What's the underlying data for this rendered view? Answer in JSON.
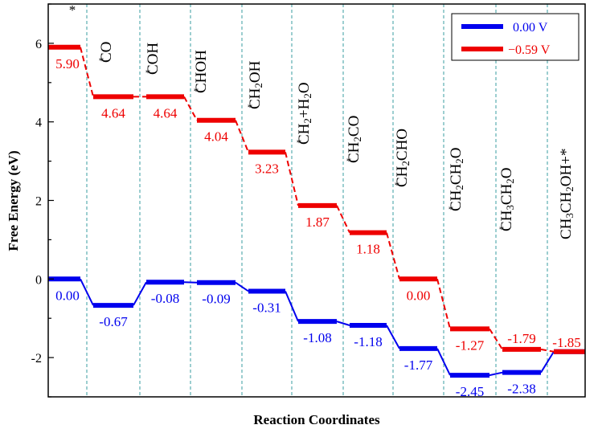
{
  "chart_data": {
    "type": "line",
    "title": "",
    "xlabel": "Reaction Coordinates",
    "ylabel": "Free Energy (eV)",
    "ylim": [
      -3,
      7
    ],
    "yticks": [
      "-2",
      "0",
      "2",
      "4",
      "6"
    ],
    "grid": false,
    "legend_position": "top-right",
    "steps": [
      {
        "asterisk": "*",
        "label": ""
      },
      {
        "asterisk": "*",
        "label": "CO"
      },
      {
        "asterisk": "*",
        "label": "COH"
      },
      {
        "asterisk": "*",
        "label": "CHOH"
      },
      {
        "asterisk": "*",
        "label": "CH2OH"
      },
      {
        "asterisk": "*",
        "label": "CH2+H2O"
      },
      {
        "asterisk": "*",
        "label": "CH2CO"
      },
      {
        "asterisk": "*",
        "label": "CH2CHO"
      },
      {
        "asterisk": "*",
        "label": "CH2CH2O"
      },
      {
        "asterisk": "*",
        "label": "CH3CH2O"
      },
      {
        "asterisk": "",
        "label": "CH3CH2OH+*"
      }
    ],
    "series": [
      {
        "name": "0.00 V",
        "color": "#0000ee",
        "values": [
          0.0,
          -0.67,
          -0.08,
          -0.09,
          -0.31,
          -1.08,
          -1.18,
          -1.77,
          -2.45,
          -2.38,
          -1.85
        ],
        "labels": [
          "0.00",
          "-0.67",
          "-0.08",
          "-0.09",
          "-0.31",
          "-1.08",
          "-1.18",
          "-1.77",
          "-2.45",
          "-2.38",
          ""
        ]
      },
      {
        "name": "−0.59 V",
        "color": "#ee0000",
        "values": [
          5.9,
          4.64,
          4.64,
          4.04,
          3.23,
          1.87,
          1.18,
          0.0,
          -1.27,
          -1.79,
          -1.85
        ],
        "labels": [
          "5.90",
          "4.64",
          "4.64",
          "4.04",
          "3.23",
          "1.87",
          "1.18",
          "0.00",
          "-1.27",
          "-1.79",
          "-1.85"
        ]
      }
    ]
  }
}
